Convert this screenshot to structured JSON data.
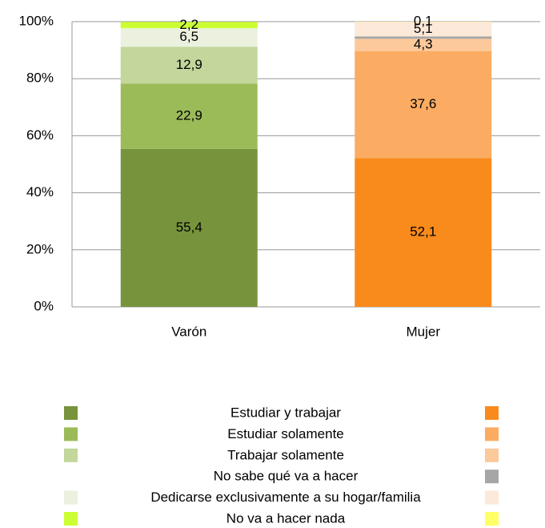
{
  "chart_data": {
    "type": "stacked_bar",
    "categories": [
      "Varón",
      "Mujer"
    ],
    "series": [
      {
        "name": "Estudiar y trabajar",
        "colors": [
          "#77933c",
          "#f98a1c"
        ],
        "values": [
          55.4,
          52.1
        ],
        "value_labels": [
          "55,4",
          "52,1"
        ]
      },
      {
        "name": "Estudiar solamente",
        "colors": [
          "#9bbb59",
          "#fbac62"
        ],
        "values": [
          22.9,
          37.6
        ],
        "value_labels": [
          "22,9",
          "37,6"
        ]
      },
      {
        "name": "Trabajar solamente",
        "colors": [
          "#c3d69b",
          "#fcc99a"
        ],
        "values": [
          12.9,
          4.3
        ],
        "value_labels": [
          "12,9",
          "4,3"
        ]
      },
      {
        "name": "No sabe qué va a hacer",
        "colors": [
          null,
          "#a6a6a6"
        ],
        "values": [
          null,
          0.8
        ],
        "value_labels": [
          null,
          null
        ]
      },
      {
        "name": "Dedicarse exclusivamente a su hogar/familia",
        "colors": [
          "#ebf1de",
          "#fde9d9"
        ],
        "values": [
          6.5,
          5.1
        ],
        "value_labels": [
          "6,5",
          "5,1"
        ]
      },
      {
        "name": "No va a hacer nada",
        "colors": [
          "#ccff33",
          "#ffff66"
        ],
        "values": [
          2.2,
          0.1
        ],
        "value_labels": [
          "2,2",
          "0,1"
        ]
      }
    ],
    "ylim": [
      0,
      100
    ],
    "yticks": [
      {
        "value": 0,
        "label": "0%"
      },
      {
        "value": 20,
        "label": "20%"
      },
      {
        "value": 40,
        "label": "40%"
      },
      {
        "value": 60,
        "label": "60%"
      },
      {
        "value": 80,
        "label": "80%"
      },
      {
        "value": 100,
        "label": "100%"
      }
    ],
    "grid": true
  }
}
